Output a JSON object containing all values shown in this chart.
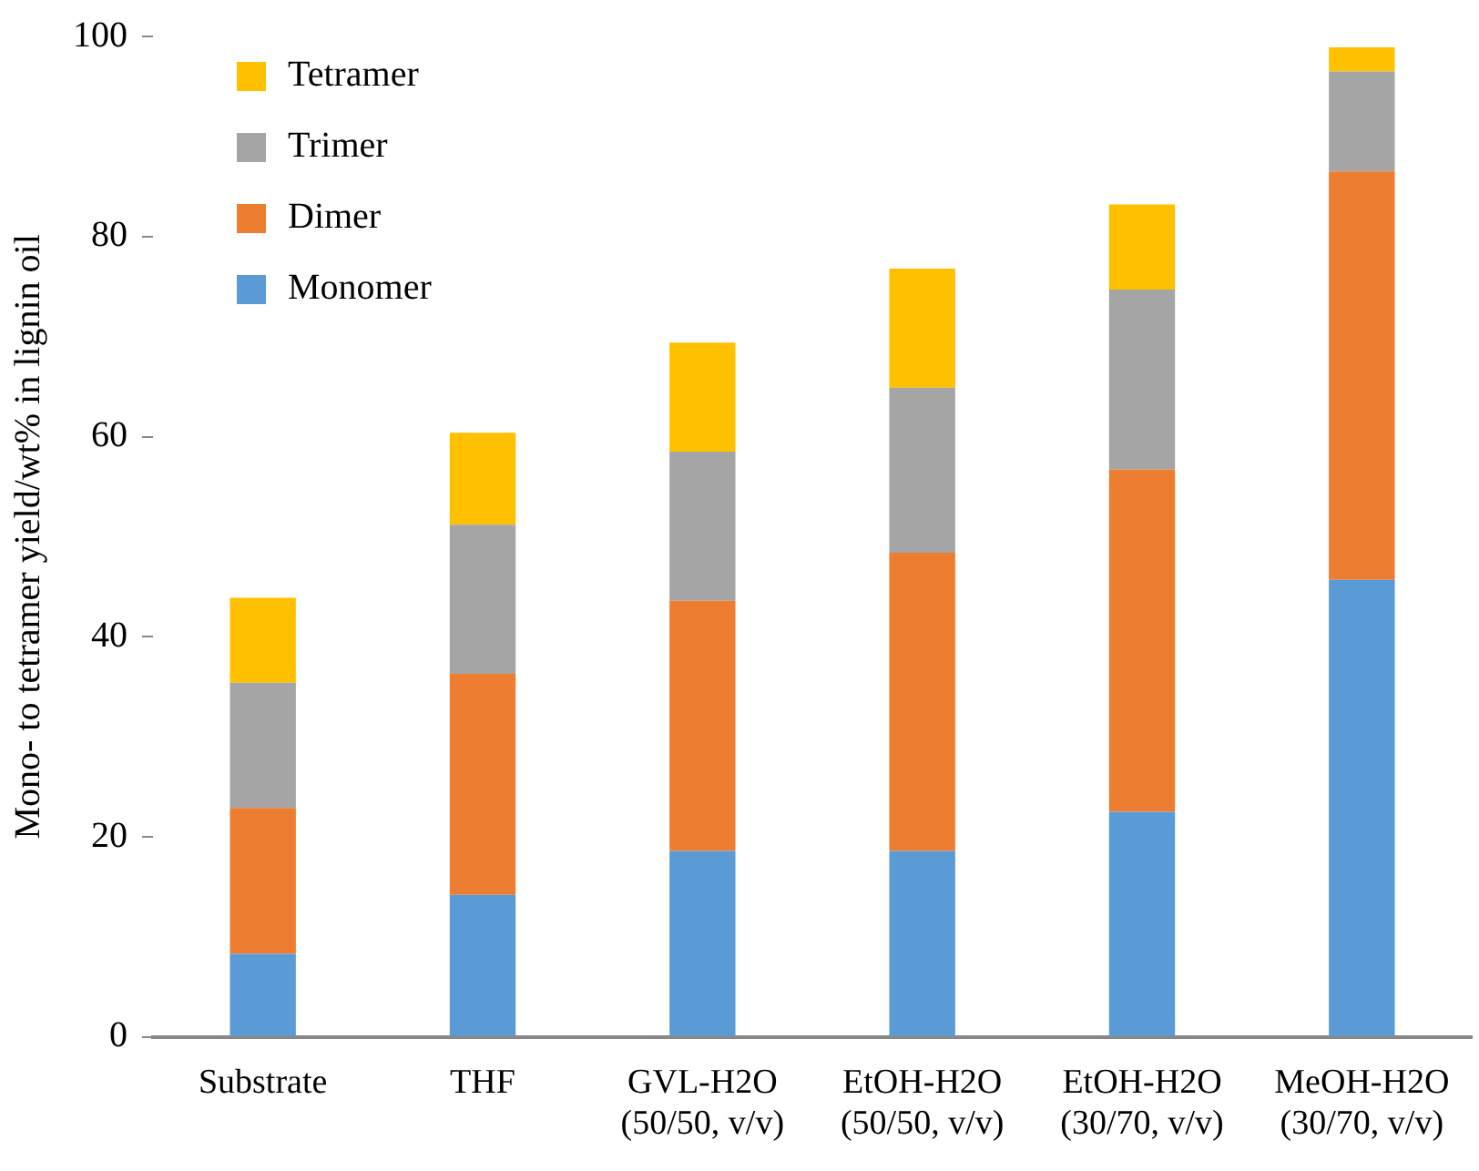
{
  "chart_data": {
    "type": "bar",
    "stacked": true,
    "ylabel": "Mono- to tetramer yield/wt% in lignin oil",
    "categories": [
      "Substrate",
      "THF",
      "GVL-H2O\n(50/50, v/v)",
      "EtOH-H2O\n(50/50, v/v)",
      "EtOH-H2O\n(30/70, v/v)",
      "MeOH-H2O\n(30/70, v/v)"
    ],
    "series": [
      {
        "name": "Monomer",
        "color": "#5b9bd5",
        "values": [
          8.3,
          14.2,
          18.6,
          18.6,
          22.5,
          45.7
        ]
      },
      {
        "name": "Dimer",
        "color": "#ed7d31",
        "values": [
          14.6,
          22.1,
          25.0,
          29.8,
          34.2,
          40.8
        ]
      },
      {
        "name": "Trimer",
        "color": "#a5a5a5",
        "values": [
          12.5,
          14.9,
          14.9,
          16.5,
          18.0,
          10.0
        ]
      },
      {
        "name": "Tetramer",
        "color": "#ffc000",
        "values": [
          8.5,
          9.2,
          10.9,
          11.9,
          8.5,
          2.4
        ]
      }
    ],
    "ylim": [
      0,
      100
    ],
    "yticks": [
      0,
      20,
      40,
      60,
      80,
      100
    ],
    "grid": false,
    "legend": "top left"
  }
}
